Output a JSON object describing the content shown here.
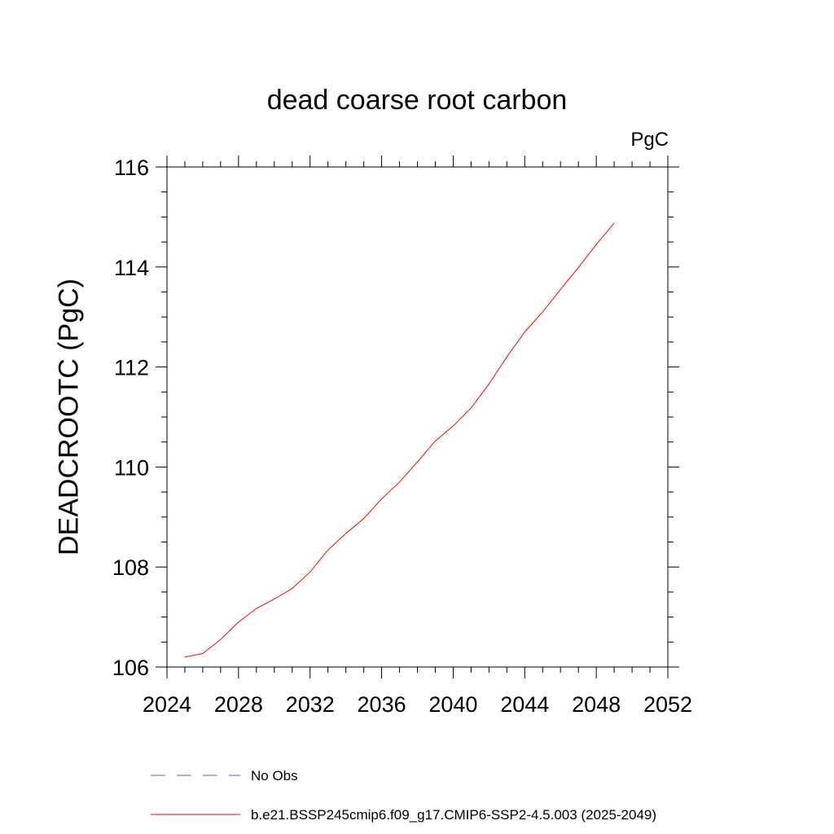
{
  "chart_data": {
    "type": "line",
    "title": "dead coarse root carbon",
    "units": "PgC",
    "xlabel": "",
    "ylabel": "DEADCROOTC  (PgC)",
    "xlim": [
      2024,
      2052
    ],
    "ylim": [
      106,
      116
    ],
    "xticks": [
      2024,
      2028,
      2032,
      2036,
      2040,
      2044,
      2048,
      2052
    ],
    "yticks": [
      106,
      108,
      110,
      112,
      114,
      116
    ],
    "legend_position": "bottom",
    "series": [
      {
        "name": "b.e21.BSSP245cmip6.f09_g17.CMIP6-SSP2-4.5.003 (2025-2049)",
        "color": "#ff0000",
        "style": "solid",
        "x": [
          2025,
          2026,
          2027,
          2028,
          2029,
          2030,
          2031,
          2032,
          2033,
          2034,
          2035,
          2036,
          2037,
          2038,
          2039,
          2040,
          2041,
          2042,
          2043,
          2044,
          2045,
          2046,
          2047,
          2048,
          2049
        ],
        "y": [
          106.2,
          106.27,
          106.55,
          106.9,
          107.17,
          107.36,
          107.57,
          107.9,
          108.34,
          108.67,
          108.97,
          109.36,
          109.7,
          110.1,
          110.52,
          110.82,
          111.18,
          111.66,
          112.2,
          112.7,
          113.1,
          113.55,
          113.99,
          114.45,
          114.88
        ]
      },
      {
        "name": "No Obs",
        "color": "#6a5acd",
        "style": "dashed",
        "x": [],
        "y": []
      }
    ]
  }
}
